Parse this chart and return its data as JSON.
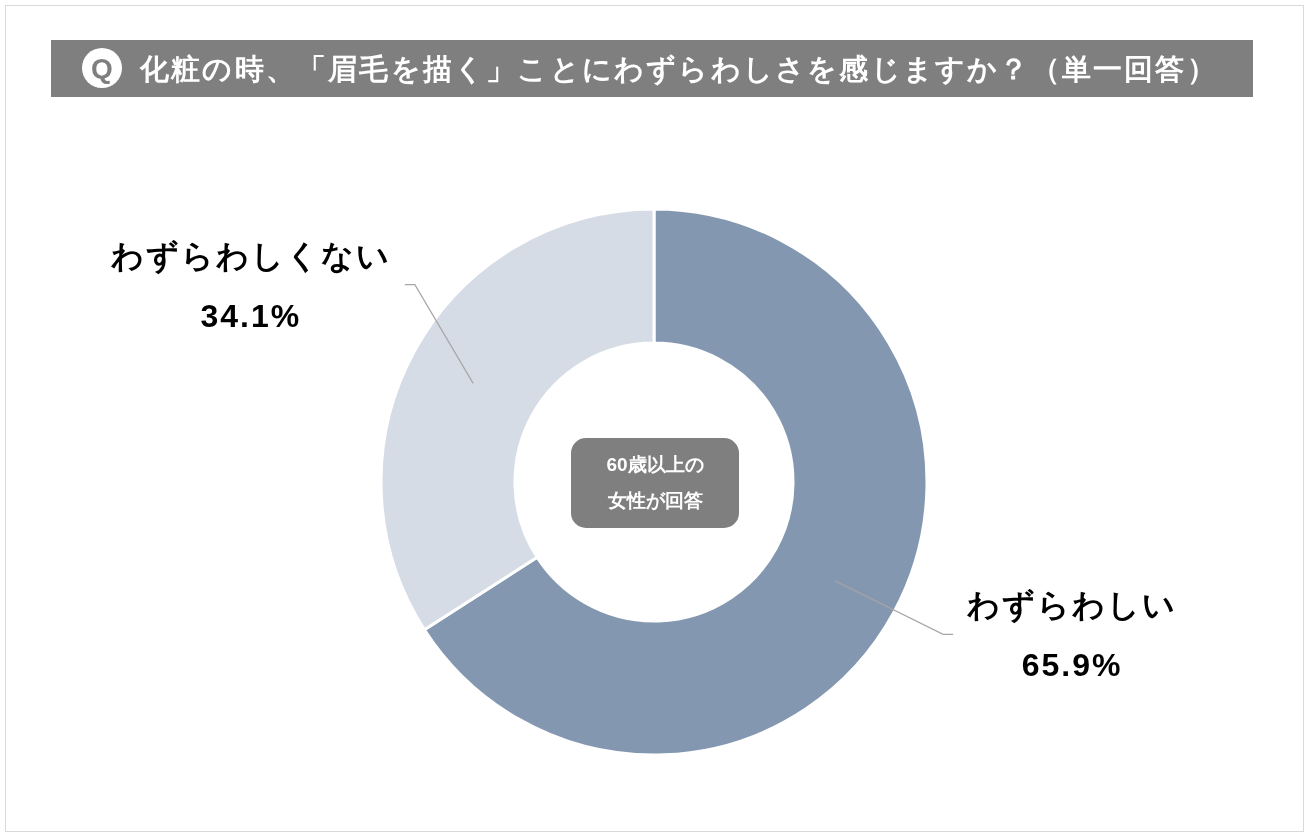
{
  "chart_data": {
    "type": "donut",
    "title": "化粧の時、「眉毛を描く」ことにわずらわしさを感じますか？（単一回答）",
    "categories": [
      "わずらわしい",
      "わずらわしくない"
    ],
    "values": [
      65.9,
      34.1
    ],
    "value_labels": [
      "65.9%",
      "34.1%"
    ],
    "colors": [
      "#8497b0",
      "#d6dce5"
    ],
    "annotations": [
      "Q",
      "60歳以上の女性が回答"
    ]
  }
}
